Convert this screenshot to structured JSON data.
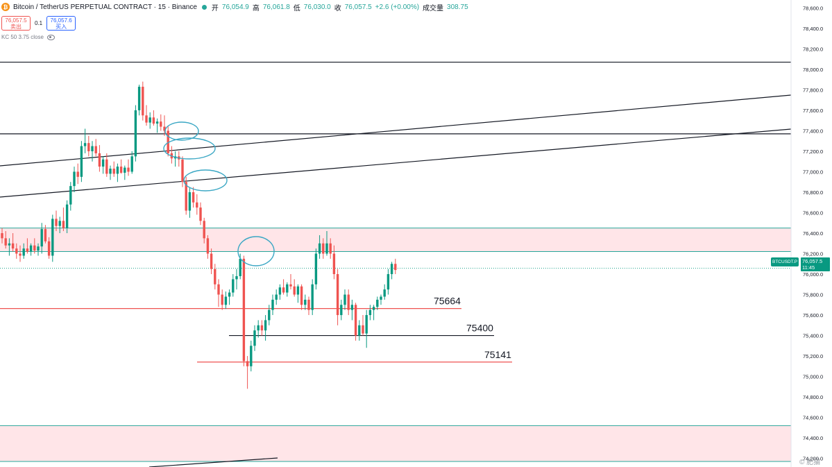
{
  "header": {
    "symbol": "Bitcoin / TetherUS PERPETUAL CONTRACT · 15 · Binance",
    "logo_glyph": "₿",
    "open_label": "开",
    "open": "76,054.9",
    "high_label": "高",
    "high": "76,061.8",
    "low_label": "低",
    "low": "76,030.0",
    "close_label": "收",
    "close": "76,057.5",
    "change": "+2.6 (+0.00%)",
    "volume_label": "成交量",
    "volume": "308.75"
  },
  "trade": {
    "sell_price": "76,057.5",
    "sell_label": "卖出",
    "spread": "0.1",
    "buy_price": "76,057.6",
    "buy_label": "买入"
  },
  "indicator": {
    "label": "KC 50 3.75 close"
  },
  "price_tag": {
    "symbol": "BTCUSDT.P",
    "price": "76,057.5",
    "countdown": "11:45"
  },
  "watermark": "© 肥猫",
  "colors": {
    "up": "#089981",
    "down": "#ef5350",
    "zone_fill": "#ffe5e8",
    "zone_edge": "#26a69a",
    "circle": "#3aa7c4"
  },
  "chart_data": {
    "type": "candlestick",
    "y_axis_ticks": [
      78600,
      78400,
      78200,
      78000,
      77800,
      77600,
      77400,
      77200,
      77000,
      76800,
      76600,
      76400,
      76200,
      76000,
      75800,
      75600,
      75400,
      75200,
      75000,
      74800,
      74600,
      74400,
      74200
    ],
    "ylim": [
      74150,
      78650
    ],
    "grid": false,
    "candles": [
      [
        76400,
        76450,
        76300,
        76350
      ],
      [
        76350,
        76420,
        76250,
        76280
      ],
      [
        76280,
        76350,
        76180,
        76300
      ],
      [
        76300,
        76400,
        76220,
        76250
      ],
      [
        76250,
        76300,
        76150,
        76200
      ],
      [
        76200,
        76280,
        76120,
        76180
      ],
      [
        76180,
        76300,
        76150,
        76250
      ],
      [
        76250,
        76350,
        76200,
        76220
      ],
      [
        76220,
        76300,
        76180,
        76280
      ],
      [
        76280,
        76350,
        76200,
        76230
      ],
      [
        76230,
        76300,
        76180,
        76270
      ],
      [
        76270,
        76500,
        76200,
        76440
      ],
      [
        76440,
        76480,
        76300,
        76320
      ],
      [
        76320,
        76360,
        76150,
        76180
      ],
      [
        76180,
        76580,
        76120,
        76540
      ],
      [
        76540,
        76620,
        76420,
        76470
      ],
      [
        76470,
        76560,
        76400,
        76520
      ],
      [
        76520,
        76650,
        76420,
        76450
      ],
      [
        76450,
        76720,
        76400,
        76680
      ],
      [
        76680,
        76900,
        76620,
        76860
      ],
      [
        76860,
        77050,
        76800,
        77000
      ],
      [
        77000,
        77080,
        76880,
        76950
      ],
      [
        76950,
        77300,
        76900,
        77250
      ],
      [
        77250,
        77420,
        77180,
        77280
      ],
      [
        77280,
        77350,
        77150,
        77200
      ],
      [
        77200,
        77300,
        77100,
        77250
      ],
      [
        77250,
        77320,
        77150,
        77180
      ],
      [
        77180,
        77260,
        77000,
        77050
      ],
      [
        77050,
        77150,
        76980,
        77120
      ],
      [
        77120,
        77180,
        76950,
        76980
      ],
      [
        76980,
        77060,
        76920,
        77030
      ],
      [
        77030,
        77100,
        76950,
        76980
      ],
      [
        76980,
        77080,
        76900,
        77050
      ],
      [
        77050,
        77120,
        76980,
        76990
      ],
      [
        76990,
        77060,
        76920,
        77040
      ],
      [
        77040,
        77120,
        76960,
        77000
      ],
      [
        77000,
        77200,
        76980,
        77150
      ],
      [
        77150,
        77650,
        77100,
        77600
      ],
      [
        77600,
        77850,
        77550,
        77830
      ],
      [
        77830,
        77880,
        77500,
        77550
      ],
      [
        77550,
        77650,
        77450,
        77480
      ],
      [
        77480,
        77580,
        77420,
        77530
      ],
      [
        77530,
        77600,
        77450,
        77470
      ],
      [
        77470,
        77520,
        77380,
        77490
      ],
      [
        77490,
        77560,
        77400,
        77440
      ],
      [
        77440,
        77550,
        77350,
        77400
      ],
      [
        77400,
        77450,
        77150,
        77180
      ],
      [
        77180,
        77250,
        77080,
        77130
      ],
      [
        77130,
        77200,
        77050,
        77150
      ],
      [
        77150,
        77200,
        77050,
        77120
      ],
      [
        77120,
        77150,
        76850,
        76900
      ],
      [
        76900,
        76950,
        76580,
        76620
      ],
      [
        76620,
        76850,
        76550,
        76800
      ],
      [
        76800,
        76850,
        76650,
        76700
      ],
      [
        76700,
        76780,
        76580,
        76650
      ],
      [
        76650,
        76700,
        76480,
        76520
      ],
      [
        76520,
        76550,
        76300,
        76350
      ],
      [
        76350,
        76380,
        76150,
        76200
      ],
      [
        76200,
        76250,
        76000,
        76050
      ],
      [
        76050,
        76100,
        75850,
        75900
      ],
      [
        75900,
        75950,
        75680,
        75800
      ],
      [
        75800,
        75850,
        75650,
        75700
      ],
      [
        75700,
        75830,
        75660,
        75780
      ],
      [
        75780,
        75850,
        75700,
        75820
      ],
      [
        75820,
        76000,
        75780,
        75950
      ],
      [
        75950,
        76050,
        75850,
        75980
      ],
      [
        75980,
        76200,
        75950,
        76150
      ],
      [
        76150,
        76180,
        75100,
        75150
      ],
      [
        75150,
        75200,
        74880,
        75100
      ],
      [
        75100,
        75350,
        75050,
        75300
      ],
      [
        75300,
        75500,
        75250,
        75450
      ],
      [
        75450,
        75550,
        75380,
        75500
      ],
      [
        75500,
        75550,
        75400,
        75450
      ],
      [
        75450,
        75600,
        75350,
        75550
      ],
      [
        75550,
        75700,
        75500,
        75650
      ],
      [
        75650,
        75800,
        75600,
        75750
      ],
      [
        75750,
        75850,
        75700,
        75800
      ],
      [
        75800,
        75900,
        75750,
        75870
      ],
      [
        75870,
        75950,
        75800,
        75820
      ],
      [
        75820,
        75920,
        75780,
        75900
      ],
      [
        75900,
        76000,
        75850,
        75880
      ],
      [
        75880,
        75950,
        75780,
        75800
      ],
      [
        75800,
        75900,
        75720,
        75880
      ],
      [
        75880,
        75900,
        75650,
        75700
      ],
      [
        75700,
        75800,
        75650,
        75750
      ],
      [
        75750,
        75780,
        75600,
        75650
      ],
      [
        75650,
        75950,
        75600,
        75900
      ],
      [
        75900,
        76250,
        75850,
        76200
      ],
      [
        76200,
        76380,
        76150,
        76300
      ],
      [
        76300,
        76350,
        76150,
        76200
      ],
      [
        76200,
        76420,
        76180,
        76300
      ],
      [
        76300,
        76350,
        76150,
        76200
      ],
      [
        76200,
        76280,
        75950,
        76000
      ],
      [
        76000,
        76050,
        75500,
        75600
      ],
      [
        75600,
        75750,
        75550,
        75700
      ],
      [
        75700,
        75850,
        75650,
        75800
      ],
      [
        75800,
        75850,
        75600,
        75650
      ],
      [
        75650,
        75750,
        75550,
        75700
      ],
      [
        75700,
        75720,
        75350,
        75400
      ],
      [
        75400,
        75550,
        75350,
        75500
      ],
      [
        75500,
        75600,
        75400,
        75420
      ],
      [
        75420,
        75650,
        75280,
        75600
      ],
      [
        75600,
        75700,
        75550,
        75650
      ],
      [
        75650,
        75700,
        75550,
        75680
      ],
      [
        75680,
        75780,
        75650,
        75750
      ],
      [
        75750,
        75800,
        75700,
        75780
      ],
      [
        75780,
        75900,
        75750,
        75850
      ],
      [
        75850,
        76050,
        75800,
        76000
      ],
      [
        76000,
        76120,
        75950,
        76100
      ],
      [
        76100,
        76150,
        76000,
        76040
      ]
    ],
    "levels": [
      {
        "label": "75664",
        "value": 75664
      },
      {
        "label": "75400",
        "value": 75400
      },
      {
        "label": "75141",
        "value": 75141
      }
    ],
    "zones": [
      [
        76220,
        76450
      ],
      [
        74170,
        74520
      ]
    ],
    "horizontal_lines": [
      78070,
      77370
    ],
    "current_price": 76057.5
  }
}
